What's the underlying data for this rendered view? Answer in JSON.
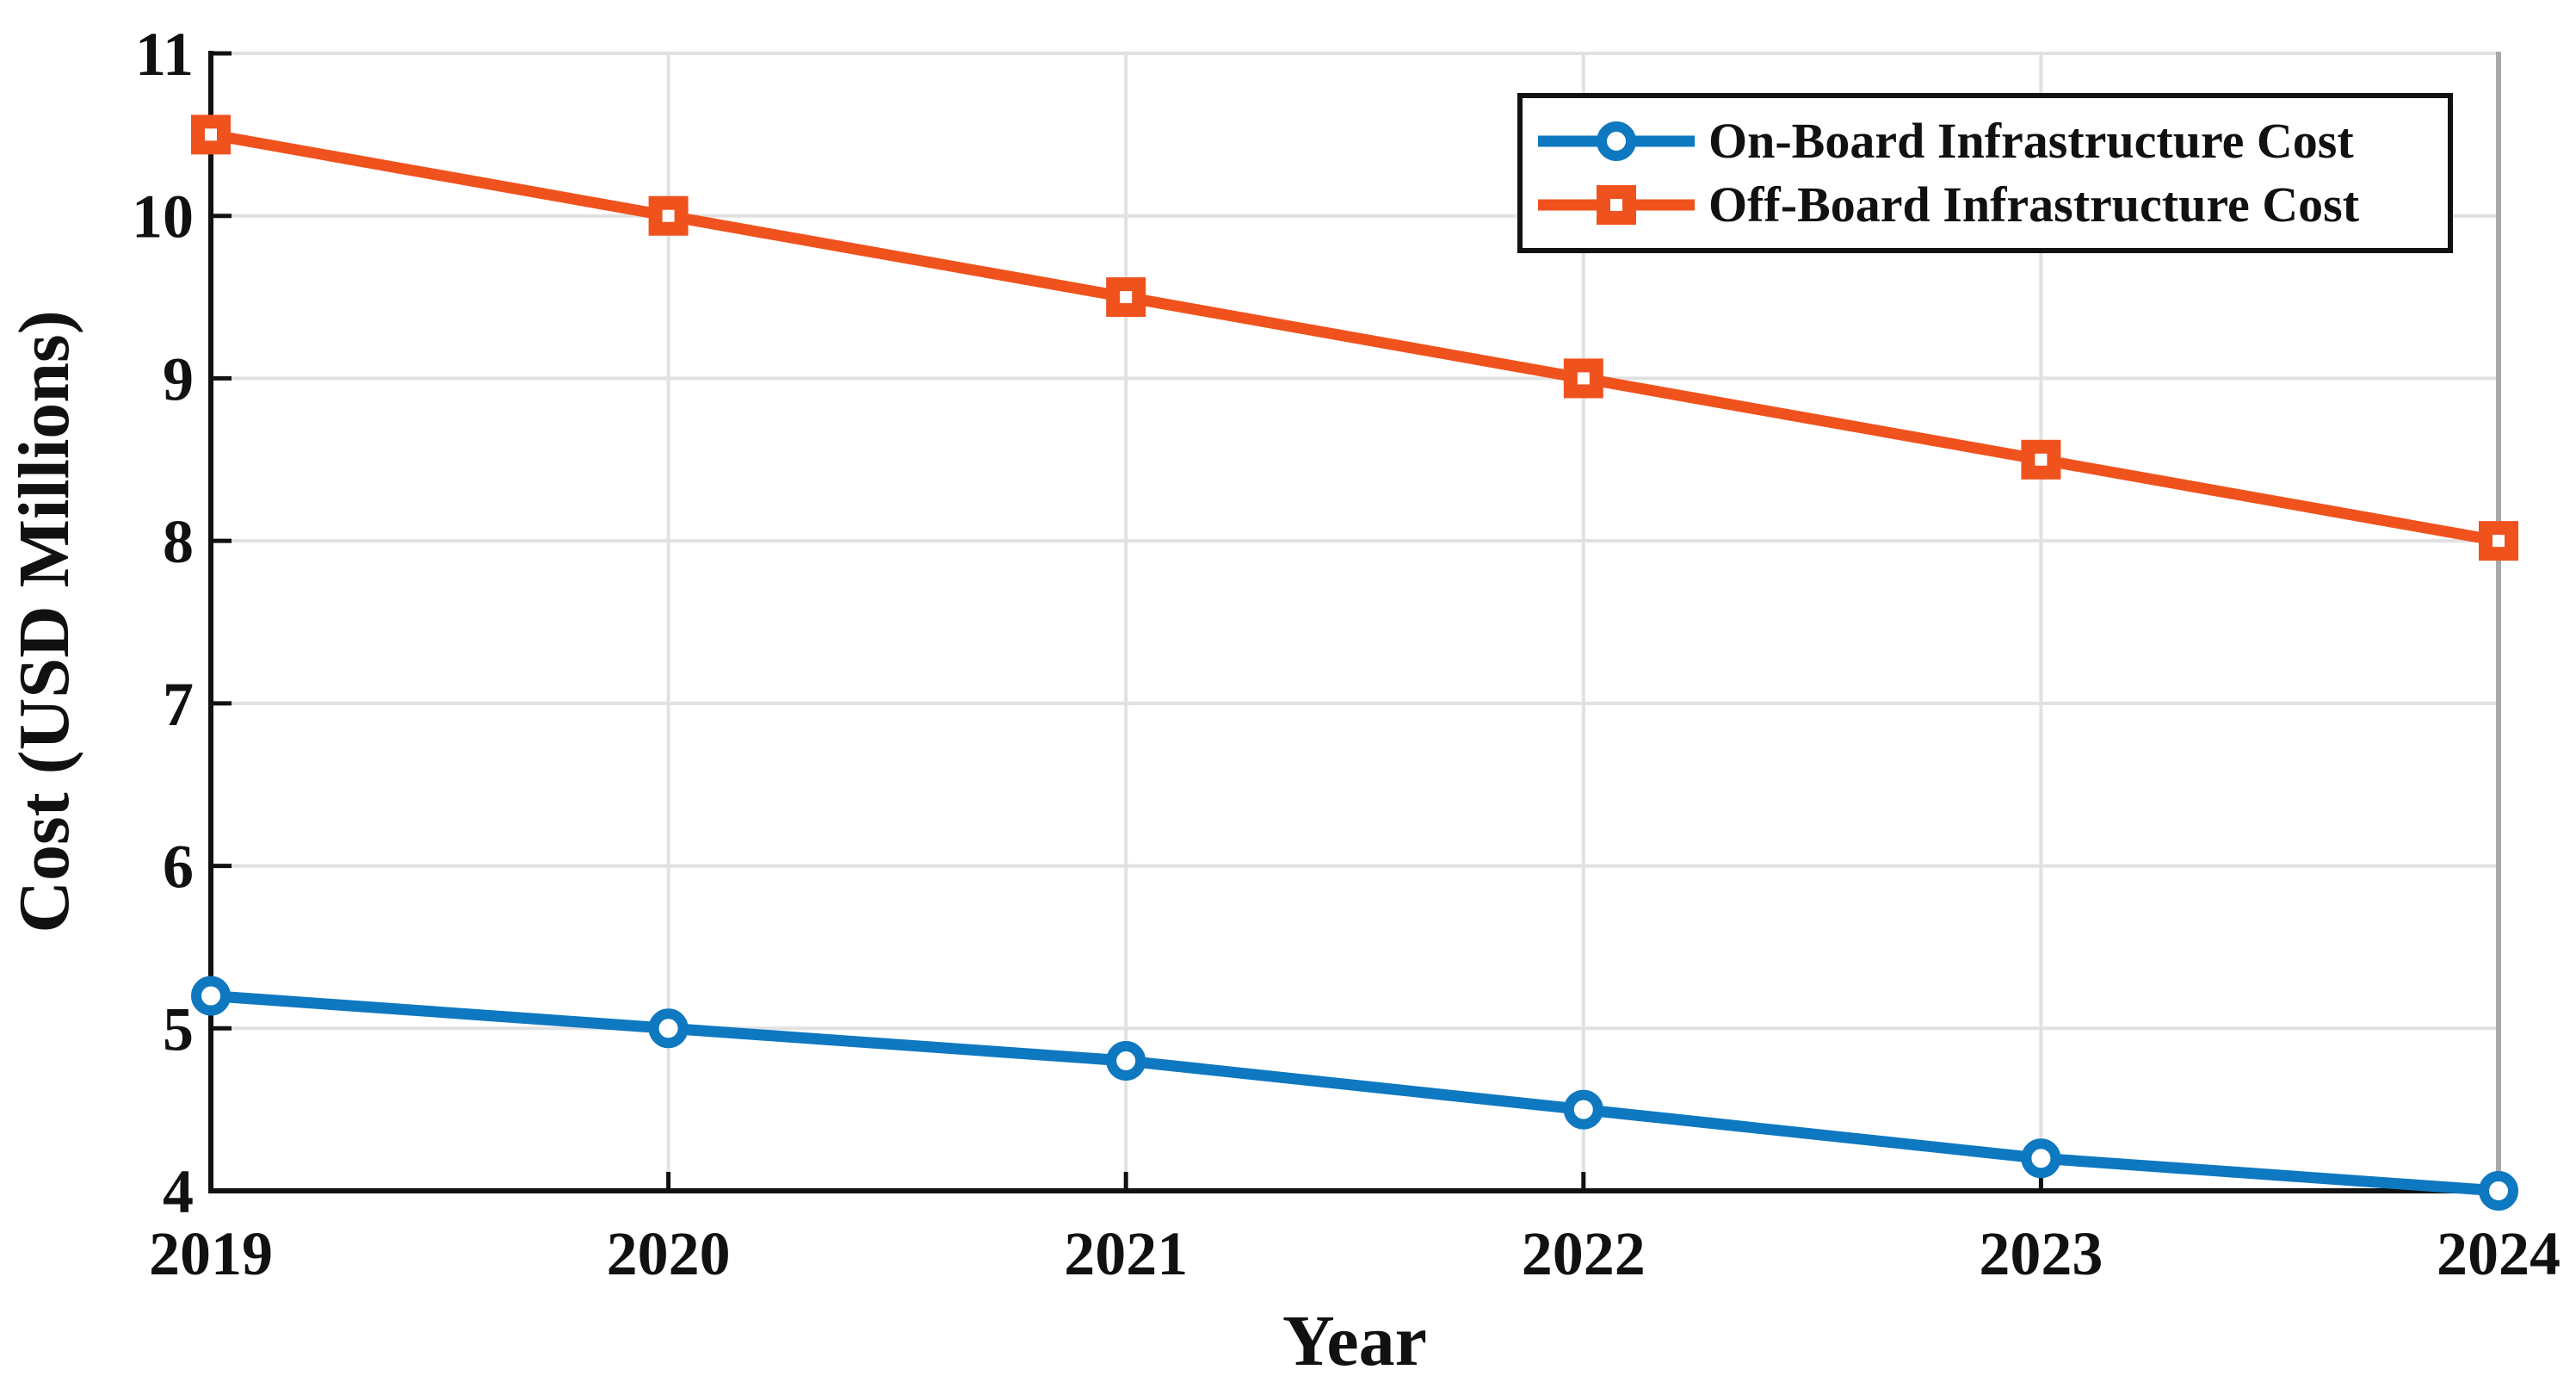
{
  "chart_data": {
    "type": "line",
    "title": "",
    "xlabel": "Year",
    "ylabel": "Cost (USD Millions)",
    "x": [
      2019,
      2020,
      2021,
      2022,
      2023,
      2024
    ],
    "series": [
      {
        "name": "On-Board Infrastructure Cost",
        "values": [
          5.2,
          5.0,
          4.8,
          4.5,
          4.2,
          4.0
        ],
        "color": "#0e78c0",
        "marker": "circle"
      },
      {
        "name": "Off-Board Infrastructure Cost",
        "values": [
          10.5,
          10.0,
          9.5,
          9.0,
          8.5,
          8.0
        ],
        "color": "#f0521d",
        "marker": "square"
      }
    ],
    "ylim": [
      4,
      11
    ],
    "yticks": [
      4,
      5,
      6,
      7,
      8,
      9,
      10,
      11
    ],
    "xticks": [
      2019,
      2020,
      2021,
      2022,
      2023,
      2024
    ],
    "grid": true,
    "legend_position": "top-right",
    "colors": {
      "grid": "#e1e1e1",
      "plot_border": "#a9a9a9",
      "axis": "#111111",
      "text": "#111111",
      "background": "#ffffff"
    }
  }
}
